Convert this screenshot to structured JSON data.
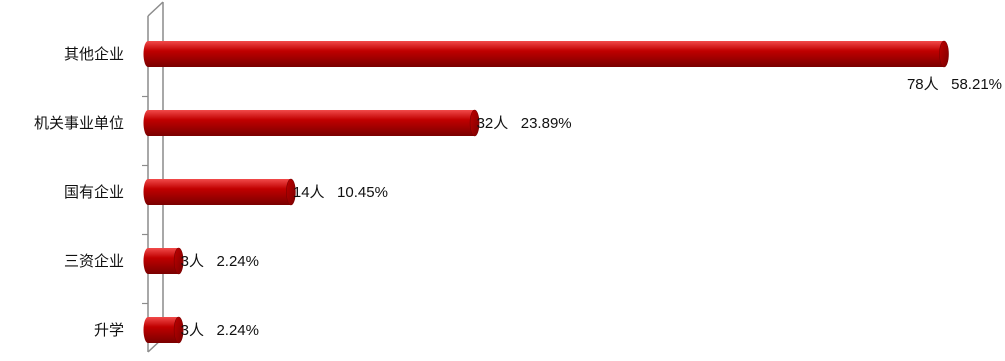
{
  "chart_data": {
    "type": "bar",
    "orientation": "horizontal",
    "style": "3d-cylinder",
    "bar_color": "#c00000",
    "bar_highlight_color": "#f24a4a",
    "bar_shadow_color": "#7a0000",
    "axis_color": "#8c8c8c",
    "categories": [
      "其他企业",
      "机关事业单位",
      "国有企业",
      "三资企业",
      "升学"
    ],
    "values": [
      78,
      32,
      14,
      3,
      3
    ],
    "percent_labels": [
      "58.21%",
      "23.89%",
      "10.45%",
      "2.24%",
      "2.24%"
    ],
    "data_labels": [
      "78人   58.21%",
      "32人   23.89%",
      "14人   10.45%",
      "3人   2.24%",
      "3人   2.24%"
    ],
    "value_axis_visible": false,
    "grid": false,
    "legend": "none"
  }
}
